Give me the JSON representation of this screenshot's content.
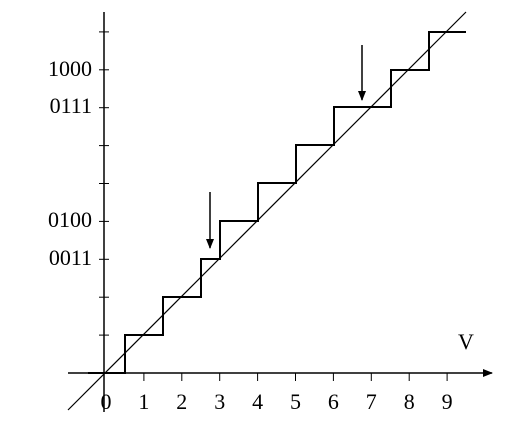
{
  "y_axis_labels": [
    "1000",
    "0111",
    "0100",
    "0011"
  ],
  "x_axis_labels": [
    "0",
    "1",
    "2",
    "3",
    "4",
    "5",
    "6",
    "7",
    "8",
    "9"
  ],
  "x_axis_title": "V"
}
